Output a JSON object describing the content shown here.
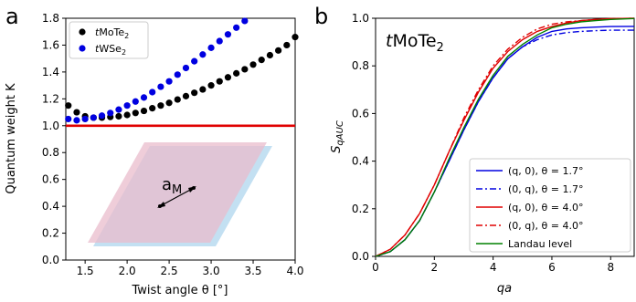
{
  "chart_data": [
    {
      "panel_label": "a",
      "type": "scatter",
      "title": "",
      "xlabel": "Twist angle θ [°]",
      "ylabel": "Quantum weight K",
      "xlim": [
        1.27,
        4.0
      ],
      "ylim": [
        0.0,
        1.8
      ],
      "xticks": [
        "1.5",
        "2.0",
        "2.5",
        "3.0",
        "3.5",
        "4.0"
      ],
      "yticks": [
        "0.0",
        "0.2",
        "0.4",
        "0.6",
        "0.8",
        "1.0",
        "1.2",
        "1.4",
        "1.6",
        "1.8"
      ],
      "grid": false,
      "legend": "top-left",
      "series": [
        {
          "name": "tMoTe2",
          "color": "#000000",
          "x": [
            1.3,
            1.4,
            1.5,
            1.6,
            1.7,
            1.8,
            1.9,
            2.0,
            2.1,
            2.2,
            2.3,
            2.4,
            2.5,
            2.6,
            2.7,
            2.8,
            2.9,
            3.0,
            3.1,
            3.2,
            3.3,
            3.4,
            3.5,
            3.6,
            3.7,
            3.8,
            3.9,
            4.0
          ],
          "y": [
            1.15,
            1.1,
            1.07,
            1.06,
            1.06,
            1.065,
            1.07,
            1.08,
            1.095,
            1.11,
            1.13,
            1.15,
            1.17,
            1.195,
            1.22,
            1.245,
            1.27,
            1.3,
            1.33,
            1.36,
            1.39,
            1.42,
            1.455,
            1.49,
            1.525,
            1.56,
            1.6,
            1.66
          ]
        },
        {
          "name": "tWSe2",
          "color": "#0000e0",
          "x": [
            1.3,
            1.4,
            1.5,
            1.6,
            1.7,
            1.8,
            1.9,
            2.0,
            2.1,
            2.2,
            2.3,
            2.4,
            2.5,
            2.6,
            2.7,
            2.8,
            2.9,
            3.0,
            3.1,
            3.2,
            3.3,
            3.4
          ],
          "y": [
            1.05,
            1.04,
            1.05,
            1.06,
            1.075,
            1.095,
            1.12,
            1.15,
            1.18,
            1.21,
            1.25,
            1.29,
            1.33,
            1.38,
            1.43,
            1.48,
            1.53,
            1.58,
            1.63,
            1.68,
            1.73,
            1.78
          ]
        }
      ],
      "reference_line": {
        "y": 1.0,
        "color": "#e00000"
      },
      "inset": {
        "annotation": "a_M",
        "label_main": "a",
        "label_sub": "M"
      }
    },
    {
      "panel_label": "b",
      "type": "line",
      "annotation_main": "t",
      "annotation_rest": "MoTe",
      "annotation_sub": "2",
      "xlabel": "qa",
      "ylabel": "S_q A_UC",
      "ylabel_main": "S",
      "ylabel_sub": "qAUC",
      "xlim": [
        0,
        8.8
      ],
      "ylim": [
        0.0,
        1.0
      ],
      "xticks": [
        "0",
        "2",
        "4",
        "6",
        "8"
      ],
      "yticks": [
        "0.0",
        "0.2",
        "0.4",
        "0.6",
        "0.8",
        "1.0"
      ],
      "grid": false,
      "legend": "bottom-right",
      "series": [
        {
          "name": "(q, 0), θ = 1.7°",
          "color": "#0000e0",
          "dash": "solid",
          "x": [
            0,
            0.5,
            1,
            1.5,
            2,
            2.5,
            3,
            3.5,
            4,
            4.5,
            5,
            5.5,
            6,
            6.5,
            7,
            7.5,
            8,
            8.8
          ],
          "y": [
            0,
            0.02,
            0.07,
            0.15,
            0.27,
            0.4,
            0.53,
            0.65,
            0.75,
            0.83,
            0.88,
            0.92,
            0.945,
            0.955,
            0.96,
            0.963,
            0.965,
            0.966
          ]
        },
        {
          "name": "(0, q), θ = 1.7°",
          "color": "#0000e0",
          "dash": "dashdot",
          "x": [
            0,
            0.5,
            1,
            1.5,
            2,
            2.5,
            3,
            3.5,
            4,
            4.5,
            5,
            5.5,
            6,
            6.5,
            7,
            7.5,
            8,
            8.8
          ],
          "y": [
            0,
            0.02,
            0.07,
            0.15,
            0.27,
            0.4,
            0.53,
            0.65,
            0.75,
            0.83,
            0.88,
            0.91,
            0.93,
            0.94,
            0.945,
            0.948,
            0.95,
            0.95
          ]
        },
        {
          "name": "(q, 0), θ = 4.0°",
          "color": "#e00000",
          "dash": "solid",
          "x": [
            0,
            0.5,
            1,
            1.5,
            2,
            2.5,
            3,
            3.5,
            4,
            4.5,
            5,
            5.5,
            6,
            6.5,
            7,
            7.5,
            8,
            8.8
          ],
          "y": [
            0,
            0.03,
            0.09,
            0.18,
            0.3,
            0.44,
            0.57,
            0.69,
            0.79,
            0.86,
            0.91,
            0.945,
            0.965,
            0.98,
            0.99,
            0.995,
            0.998,
            1.0
          ]
        },
        {
          "name": "(0, q), θ = 4.0°",
          "color": "#e00000",
          "dash": "dashdot",
          "x": [
            0,
            0.5,
            1,
            1.5,
            2,
            2.5,
            3,
            3.5,
            4,
            4.5,
            5,
            5.5,
            6,
            6.5,
            7,
            7.5,
            8,
            8.8
          ],
          "y": [
            0,
            0.03,
            0.09,
            0.18,
            0.3,
            0.44,
            0.58,
            0.7,
            0.8,
            0.87,
            0.92,
            0.955,
            0.975,
            0.985,
            0.99,
            0.995,
            0.998,
            1.0
          ]
        },
        {
          "name": "Landau level",
          "color": "#008000",
          "dash": "solid",
          "x": [
            0,
            0.5,
            1,
            1.5,
            2,
            2.5,
            3,
            3.5,
            4,
            4.5,
            5,
            5.5,
            6,
            6.5,
            7,
            7.5,
            8,
            8.8
          ],
          "y": [
            0,
            0.02,
            0.07,
            0.15,
            0.27,
            0.41,
            0.54,
            0.66,
            0.76,
            0.84,
            0.89,
            0.93,
            0.96,
            0.975,
            0.985,
            0.99,
            0.995,
            0.999
          ]
        }
      ]
    }
  ]
}
